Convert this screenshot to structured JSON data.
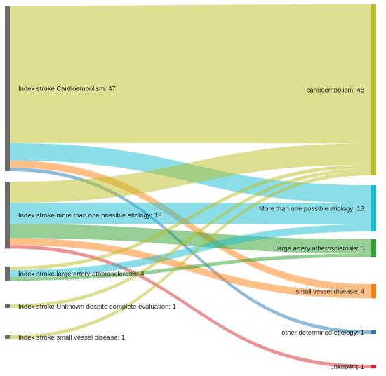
{
  "chart_data": {
    "type": "sankey",
    "sources": [
      {
        "id": "s_ce",
        "label": "Index stroke Cardioembolism: 47",
        "value": 47,
        "color": "#6b6b6b"
      },
      {
        "id": "s_more",
        "label": "Index stroke more than one possible etiology: 19",
        "value": 19,
        "color": "#6b6b6b"
      },
      {
        "id": "s_laa",
        "label": "Index stroke large artery atherosclerosis: 4",
        "value": 4,
        "color": "#6b6b6b"
      },
      {
        "id": "s_unk",
        "label": "Index stroke Unknown despite complete evaluation: 1",
        "value": 1,
        "color": "#6b6b6b"
      },
      {
        "id": "s_svd",
        "label": "Index stroke small vessel disease: 1",
        "value": 1,
        "color": "#6b6b6b"
      }
    ],
    "targets": [
      {
        "id": "t_ce",
        "label": "cardioembolism: 48",
        "value": 48,
        "color": "#bcbd22"
      },
      {
        "id": "t_more",
        "label": "More than one possible etiology: 13",
        "value": 13,
        "color": "#17becf"
      },
      {
        "id": "t_laa",
        "label": "large artery atherosclerosis: 5",
        "value": 5,
        "color": "#2ca02c"
      },
      {
        "id": "t_svd",
        "label": "small vessel disease: 4",
        "value": 4,
        "color": "#ff7f0e"
      },
      {
        "id": "t_other",
        "label": "other determined etiology: 1",
        "value": 1,
        "color": "#1f77b4"
      },
      {
        "id": "t_unknown",
        "label": "unknown: 1",
        "value": 1,
        "color": "#d62728"
      }
    ],
    "links": [
      {
        "source": "s_ce",
        "target": "t_ce",
        "value": 39
      },
      {
        "source": "s_ce",
        "target": "t_more",
        "value": 5
      },
      {
        "source": "s_ce",
        "target": "t_svd",
        "value": 2
      },
      {
        "source": "s_ce",
        "target": "t_other",
        "value": 1
      },
      {
        "source": "s_more",
        "target": "t_ce",
        "value": 6
      },
      {
        "source": "s_more",
        "target": "t_more",
        "value": 6
      },
      {
        "source": "s_more",
        "target": "t_laa",
        "value": 4
      },
      {
        "source": "s_more",
        "target": "t_svd",
        "value": 2
      },
      {
        "source": "s_more",
        "target": "t_unknown",
        "value": 1
      },
      {
        "source": "s_laa",
        "target": "t_ce",
        "value": 1
      },
      {
        "source": "s_laa",
        "target": "t_more",
        "value": 2
      },
      {
        "source": "s_laa",
        "target": "t_laa",
        "value": 1
      },
      {
        "source": "s_unk",
        "target": "t_ce",
        "value": 1
      },
      {
        "source": "s_svd",
        "target": "t_ce",
        "value": 1
      }
    ]
  }
}
